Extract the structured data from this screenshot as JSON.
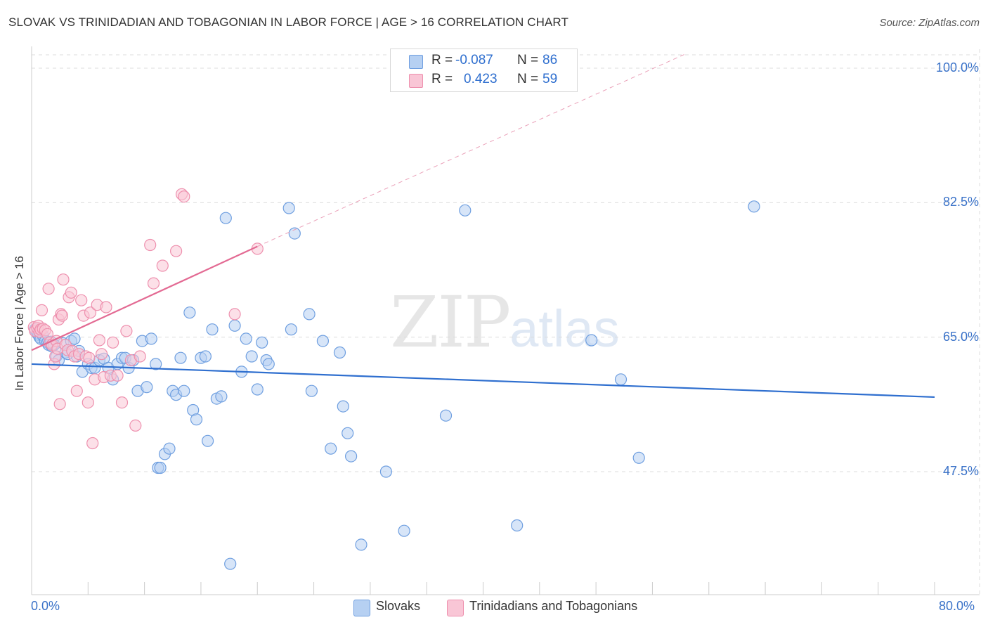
{
  "header": {
    "title": "SLOVAK VS TRINIDADIAN AND TOBAGONIAN IN LABOR FORCE | AGE > 16 CORRELATION CHART",
    "source": "Source: ZipAtlas.com"
  },
  "watermark": {
    "zip": "ZIP",
    "atlas": "atlas"
  },
  "legend": {
    "rows": [
      {
        "r_label": "R = ",
        "r_value": "-0.087",
        "n_label": "N = ",
        "n_value": "86",
        "fill": "#b6d0f2",
        "stroke": "#6f9fe0"
      },
      {
        "r_label": "R = ",
        "r_value": "0.423",
        "n_label": "N = ",
        "n_value": "59",
        "fill": "#f9c6d6",
        "stroke": "#ee90ae"
      }
    ]
  },
  "bottom_legend": {
    "items": [
      {
        "label": "Slovaks",
        "fill": "#b6d0f2",
        "stroke": "#6f9fe0"
      },
      {
        "label": "Trinidadians and Tobagonians",
        "fill": "#f9c6d6",
        "stroke": "#ee90ae"
      }
    ]
  },
  "chart_data": {
    "type": "scatter",
    "title": "SLOVAK VS TRINIDADIAN AND TOBAGONIAN IN LABOR FORCE | AGE > 16 CORRELATION CHART",
    "xlabel": "",
    "ylabel": "In Labor Force | Age > 16",
    "xlim": [
      0,
      80
    ],
    "ylim": [
      33,
      102
    ],
    "x_tick_labels": [
      "0.0%",
      "80.0%"
    ],
    "y_ticks": [
      47.5,
      65.0,
      82.5,
      100.0
    ],
    "y_tick_labels": [
      "47.5%",
      "65.0%",
      "82.5%",
      "100.0%"
    ],
    "grid": true,
    "legend_position": "top-center",
    "series": [
      {
        "name": "Slovaks",
        "color": "#6f9fe0",
        "fill": "#b6d0f2",
        "trend": {
          "x": [
            0,
            80
          ],
          "y": [
            61.5,
            57.2
          ],
          "line_color": "#2f6fcf"
        },
        "points": [
          [
            0.3,
            66.0
          ],
          [
            0.5,
            65.5
          ],
          [
            0.6,
            65.3
          ],
          [
            0.7,
            65.0
          ],
          [
            0.8,
            64.8
          ],
          [
            1.0,
            65.2
          ],
          [
            1.2,
            64.5
          ],
          [
            1.4,
            64.3
          ],
          [
            1.5,
            64.0
          ],
          [
            1.7,
            64.4
          ],
          [
            1.8,
            63.8
          ],
          [
            2.0,
            64.0
          ],
          [
            2.2,
            62.5
          ],
          [
            2.4,
            62.0
          ],
          [
            2.8,
            64.2
          ],
          [
            3.0,
            63.0
          ],
          [
            3.2,
            62.8
          ],
          [
            3.5,
            64.5
          ],
          [
            3.8,
            64.8
          ],
          [
            4.0,
            62.5
          ],
          [
            4.2,
            63.2
          ],
          [
            4.5,
            60.5
          ],
          [
            5.0,
            61.5
          ],
          [
            5.3,
            61.0
          ],
          [
            5.6,
            61.0
          ],
          [
            6.0,
            62.0
          ],
          [
            6.4,
            62.2
          ],
          [
            6.8,
            61.0
          ],
          [
            7.2,
            59.5
          ],
          [
            7.6,
            61.5
          ],
          [
            8.0,
            62.3
          ],
          [
            8.3,
            62.3
          ],
          [
            8.6,
            61.0
          ],
          [
            9.0,
            62.0
          ],
          [
            9.4,
            58.0
          ],
          [
            9.8,
            64.5
          ],
          [
            10.2,
            58.5
          ],
          [
            10.6,
            64.8
          ],
          [
            11.0,
            61.5
          ],
          [
            11.2,
            48.0
          ],
          [
            11.4,
            48.0
          ],
          [
            11.8,
            49.8
          ],
          [
            12.2,
            50.5
          ],
          [
            12.5,
            58.0
          ],
          [
            12.8,
            57.5
          ],
          [
            13.2,
            62.3
          ],
          [
            13.5,
            58.0
          ],
          [
            14.0,
            68.2
          ],
          [
            14.3,
            55.5
          ],
          [
            14.6,
            54.3
          ],
          [
            15.0,
            62.3
          ],
          [
            15.4,
            62.5
          ],
          [
            15.6,
            51.5
          ],
          [
            16.0,
            66.0
          ],
          [
            16.4,
            57.0
          ],
          [
            16.8,
            57.3
          ],
          [
            17.2,
            80.5
          ],
          [
            17.6,
            35.5
          ],
          [
            18.0,
            66.5
          ],
          [
            18.6,
            60.5
          ],
          [
            19.0,
            64.8
          ],
          [
            19.5,
            62.5
          ],
          [
            20.0,
            58.2
          ],
          [
            20.4,
            64.3
          ],
          [
            20.8,
            62.0
          ],
          [
            21.0,
            61.5
          ],
          [
            22.8,
            81.8
          ],
          [
            23.0,
            66.0
          ],
          [
            23.3,
            78.5
          ],
          [
            24.6,
            68.0
          ],
          [
            24.8,
            58.0
          ],
          [
            25.8,
            64.5
          ],
          [
            26.5,
            50.5
          ],
          [
            27.3,
            63.0
          ],
          [
            27.6,
            56.0
          ],
          [
            28.0,
            52.5
          ],
          [
            28.3,
            49.5
          ],
          [
            29.2,
            38.0
          ],
          [
            31.4,
            47.5
          ],
          [
            33.0,
            39.8
          ],
          [
            36.7,
            54.8
          ],
          [
            38.4,
            81.5
          ],
          [
            43.0,
            40.5
          ],
          [
            49.6,
            64.6
          ],
          [
            52.2,
            59.5
          ],
          [
            53.8,
            49.3
          ],
          [
            64.0,
            82.0
          ]
        ]
      },
      {
        "name": "Trinidadians and Tobagonians",
        "color": "#ee90ae",
        "fill": "#f9c6d6",
        "trend": {
          "x": [
            0,
            20
          ],
          "y": [
            63.3,
            76.8
          ],
          "line_color": "#e36a93",
          "extension": {
            "x": [
              20,
              58
            ],
            "y": [
              76.8,
              101.9
            ]
          }
        },
        "points": [
          [
            0.2,
            66.3
          ],
          [
            0.3,
            65.8
          ],
          [
            0.5,
            66.2
          ],
          [
            0.6,
            66.5
          ],
          [
            0.7,
            65.7
          ],
          [
            0.8,
            66.0
          ],
          [
            0.9,
            68.5
          ],
          [
            1.0,
            66.1
          ],
          [
            1.2,
            65.9
          ],
          [
            1.4,
            65.4
          ],
          [
            1.5,
            71.3
          ],
          [
            1.6,
            64.3
          ],
          [
            1.8,
            64.0
          ],
          [
            2.0,
            61.5
          ],
          [
            2.1,
            62.5
          ],
          [
            2.2,
            64.5
          ],
          [
            2.3,
            63.5
          ],
          [
            2.4,
            67.3
          ],
          [
            2.5,
            56.3
          ],
          [
            2.6,
            68.0
          ],
          [
            2.7,
            67.8
          ],
          [
            2.8,
            72.5
          ],
          [
            3.0,
            64.0
          ],
          [
            3.2,
            63.3
          ],
          [
            3.3,
            70.2
          ],
          [
            3.5,
            70.8
          ],
          [
            3.6,
            63.2
          ],
          [
            3.8,
            62.5
          ],
          [
            4.0,
            58.0
          ],
          [
            4.2,
            62.8
          ],
          [
            4.4,
            69.8
          ],
          [
            4.6,
            67.8
          ],
          [
            4.8,
            62.5
          ],
          [
            5.0,
            56.5
          ],
          [
            5.1,
            62.3
          ],
          [
            5.2,
            68.2
          ],
          [
            5.4,
            51.2
          ],
          [
            5.6,
            59.5
          ],
          [
            5.8,
            69.2
          ],
          [
            6.0,
            64.6
          ],
          [
            6.2,
            62.8
          ],
          [
            6.4,
            59.8
          ],
          [
            6.6,
            68.9
          ],
          [
            7.0,
            60.0
          ],
          [
            7.2,
            64.3
          ],
          [
            7.6,
            60.0
          ],
          [
            8.0,
            56.5
          ],
          [
            8.4,
            65.8
          ],
          [
            8.8,
            62.0
          ],
          [
            9.2,
            53.5
          ],
          [
            9.6,
            62.5
          ],
          [
            10.5,
            77.0
          ],
          [
            10.8,
            72.0
          ],
          [
            11.6,
            74.3
          ],
          [
            12.8,
            76.2
          ],
          [
            13.3,
            83.6
          ],
          [
            13.5,
            83.3
          ],
          [
            18.0,
            68.0
          ],
          [
            20.0,
            76.5
          ]
        ]
      }
    ]
  }
}
